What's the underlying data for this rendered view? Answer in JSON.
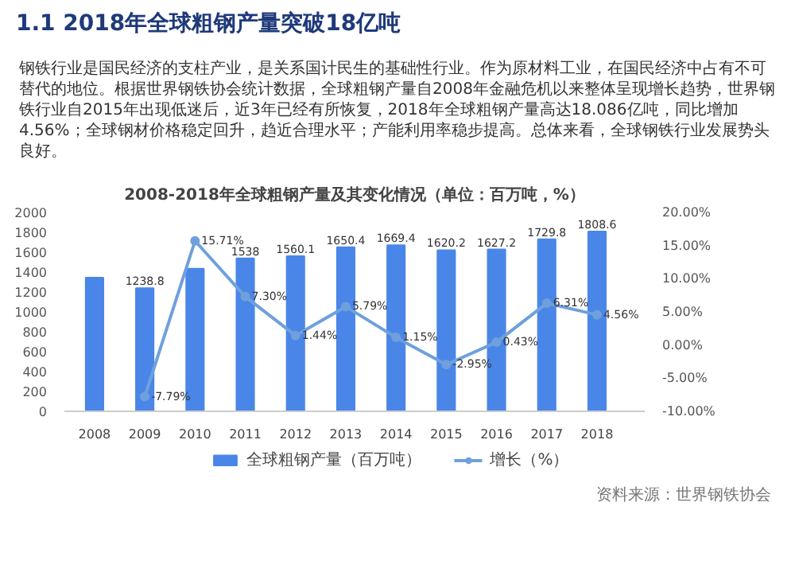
{
  "chart_data": {
    "type": "bar",
    "title": "2008-2018年全球粗钢产量及其变化情况（单位：百万吨，%）",
    "categories": [
      "2008",
      "2009",
      "2010",
      "2011",
      "2012",
      "2013",
      "2014",
      "2015",
      "2016",
      "2017",
      "2018"
    ],
    "series": [
      {
        "name": "全球粗钢产量（百万吨）",
        "color": "#4a86e8",
        "values": [
          1343.4,
          1238.8,
          1433.4,
          1538,
          1560.1,
          1650.4,
          1669.4,
          1620.2,
          1627.2,
          1729.8,
          1808.6
        ],
        "value_labels": [
          null,
          "1238.8",
          null,
          "1538",
          "1560.1",
          "1650.4",
          "1669.4",
          "1620.2",
          "1627.2",
          "1729.8",
          "1808.6"
        ]
      },
      {
        "name": "增长（%）",
        "type": "line",
        "axis": "y2",
        "color": "#6fa0dc",
        "marker": "circle",
        "values": [
          null,
          -7.79,
          15.71,
          7.3,
          1.44,
          5.79,
          1.15,
          -2.95,
          0.43,
          6.31,
          4.56
        ],
        "value_labels": [
          null,
          "-7.79%",
          "15.71%",
          "7.30%",
          "1.44%",
          "5.79%",
          "1.15%",
          "-2.95%",
          "0.43%",
          "6.31%",
          "4.56%"
        ]
      }
    ],
    "ylim": [
      0,
      2000
    ],
    "yticks": [
      0,
      200,
      400,
      600,
      800,
      1000,
      1200,
      1400,
      1600,
      1800,
      2000
    ],
    "y2lim": [
      -10,
      20
    ],
    "y2ticks": [
      {
        "value": -10,
        "label": "-10.00%"
      },
      {
        "value": -5,
        "label": "-5.00%"
      },
      {
        "value": 0,
        "label": "0.00%"
      },
      {
        "value": 5,
        "label": "5.00%"
      },
      {
        "value": 10,
        "label": "10.00%"
      },
      {
        "value": 15,
        "label": "15.00%"
      },
      {
        "value": 20,
        "label": "20.00%"
      }
    ],
    "legend": "bottom",
    "annotations": [
      "1.1 2018年全球粗钢产量突破18亿吨",
      "钢铁行业是国民经济的支柱产业，是关系国计民生的基础性行业。作为原材料工业，在国民经济中占有不可替代的地位。根据世界钢铁协会统计数据，全球粗钢产量自2008年金融危机以来整体呈现增长趋势，世界钢铁行业自2015年出现低迷后，近3年已经有所恢复，2018年全球粗钢产量高达18.086亿吨，同比增加4.56%；全球钢材价格稳定回升，趋近合理水平；产能利用率稳步提高。总体来看，全球钢铁行业发展势头良好。",
      "资料来源：世界钢铁协会"
    ]
  }
}
